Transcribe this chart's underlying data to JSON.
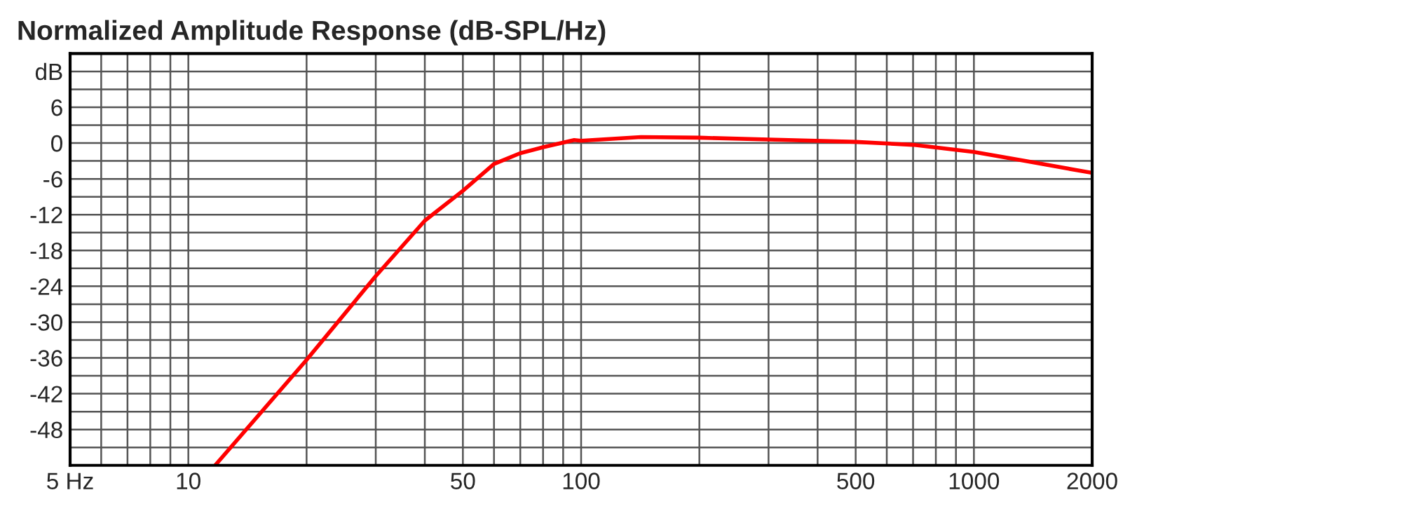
{
  "chart_data": {
    "type": "line",
    "title": "Normalized Amplitude Response (dB-SPL/Hz)",
    "x": [
      11.7,
      19.9,
      29.9,
      40,
      50,
      60,
      70,
      80,
      96,
      100,
      142,
      200,
      300,
      500,
      700,
      1000,
      1350,
      2000
    ],
    "series": [
      {
        "color": "#ff0000",
        "values": [
          -54,
          -36.5,
          -22.4,
          -13,
          -8,
          -3.5,
          -1.7,
          -0.7,
          0.5,
          0.4,
          1,
          0.9,
          0.6,
          0.2,
          -0.3,
          -1.5,
          -3,
          -5
        ]
      }
    ],
    "log": "x",
    "xlim": [
      5,
      2000
    ],
    "ylim": [
      -54,
      15
    ],
    "xticks": [
      {
        "value": 5,
        "label": "5 Hz"
      },
      {
        "value": 6,
        "label": null
      },
      {
        "value": 7,
        "label": null
      },
      {
        "value": 8,
        "label": null
      },
      {
        "value": 9,
        "label": null
      },
      10,
      {
        "value": 20,
        "label": null
      },
      {
        "value": 30,
        "label": null
      },
      {
        "value": 40,
        "label": null
      },
      50,
      {
        "value": 60,
        "label": null
      },
      {
        "value": 70,
        "label": null
      },
      {
        "value": 80,
        "label": null
      },
      {
        "value": 90,
        "label": null
      },
      100,
      {
        "value": 200,
        "label": null
      },
      {
        "value": 300,
        "label": null
      },
      {
        "value": 400,
        "label": null
      },
      500,
      {
        "value": 600,
        "label": null
      },
      {
        "value": 700,
        "label": null
      },
      {
        "value": 800,
        "label": null
      },
      {
        "value": 900,
        "label": null
      },
      1000,
      2000
    ],
    "yticks": [
      {
        "value": 15,
        "label": null
      },
      {
        "value": 12,
        "label": "dB"
      },
      {
        "value": 9,
        "label": null
      },
      6,
      {
        "value": 3,
        "label": null
      },
      0,
      {
        "value": -3,
        "label": null
      },
      -6,
      {
        "value": -9,
        "label": null
      },
      -12,
      {
        "value": -15,
        "label": null
      },
      -18,
      {
        "value": -21,
        "label": null
      },
      -24,
      {
        "value": -27,
        "label": null
      },
      -30,
      {
        "value": -33,
        "label": null
      },
      -36,
      {
        "value": -39,
        "label": null
      },
      -42,
      {
        "value": -45,
        "label": null
      },
      -48,
      {
        "value": -51,
        "label": null
      },
      {
        "value": -54,
        "label": null
      }
    ],
    "grid": true,
    "legend": false,
    "marker": "none",
    "line_style": "solid"
  }
}
